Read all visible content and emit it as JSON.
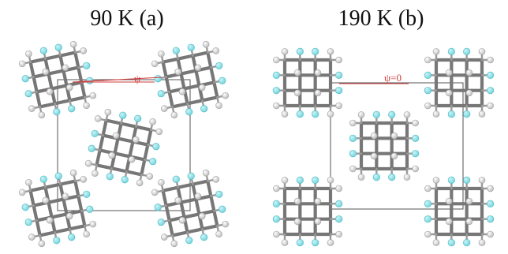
{
  "panels": [
    {
      "title": "90 K (a)",
      "angle_label": "ψ"
    },
    {
      "title": "190 K (b)",
      "angle_label": "ψ=0"
    }
  ],
  "colors": {
    "carbon": "#777777",
    "hydrogen": "#eeeeee",
    "deuterium_cyan": "#6fd3dc",
    "unit_cell": "#555555",
    "angle_line": "#d23b3b"
  },
  "icons": {
    "hydrogen_atom": "sphere",
    "carbon_bond": "cylinder"
  }
}
